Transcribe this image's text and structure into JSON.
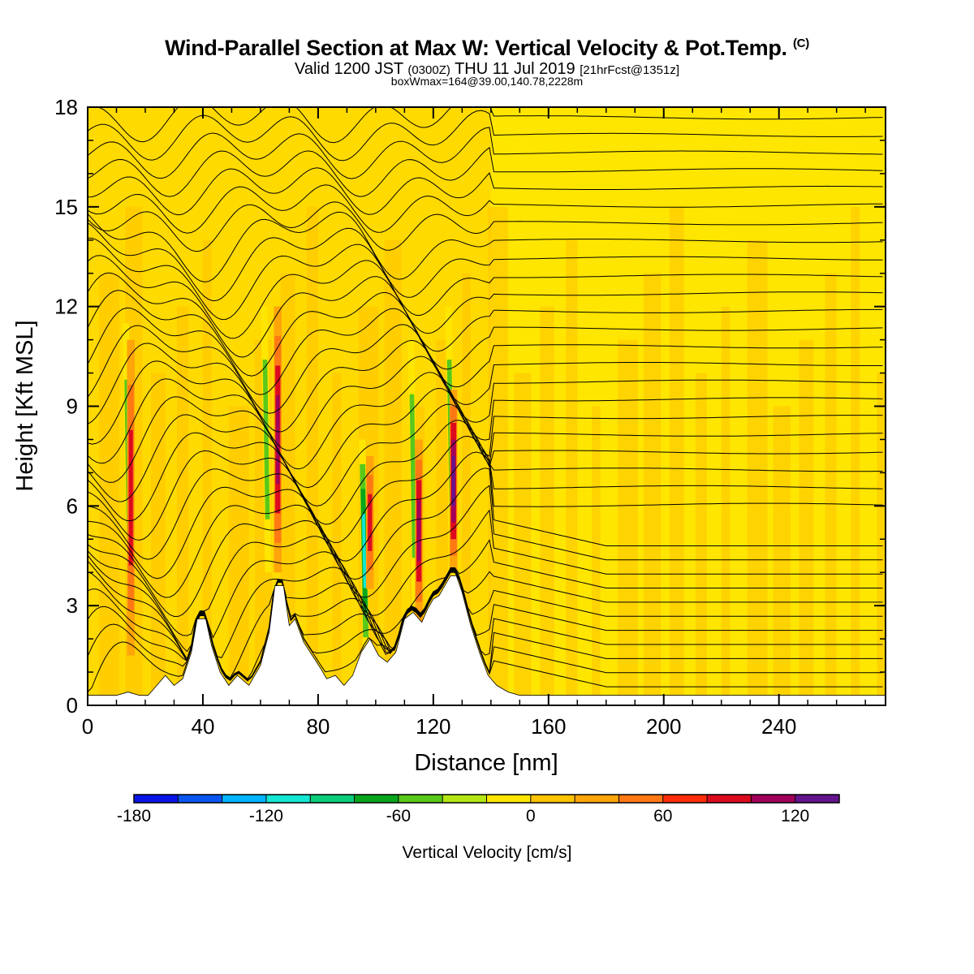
{
  "header": {
    "title": "Wind-Parallel Section at Max W: Vertical Velocity & Pot.Temp.",
    "title_mark": "(C)",
    "valid_prefix": "Valid 1200 JST",
    "valid_z": "(0300Z)",
    "valid_date": "THU 11 Jul 2019",
    "valid_fcst": "[21hrFcst@1351z]",
    "boxline": "boxWmax=164@39.00,140.78,2228m"
  },
  "chart_data": {
    "type": "heatmap",
    "xlabel": "Distance [nm]",
    "ylabel": "Height [Kft MSL]",
    "xlim": [
      0,
      277
    ],
    "ylim": [
      0,
      18
    ],
    "x_ticks": [
      0,
      40,
      80,
      120,
      160,
      200,
      240
    ],
    "y_ticks": [
      0,
      3,
      6,
      9,
      12,
      15,
      18
    ],
    "background_value_cm_s": 0,
    "terrain_kft": [
      [
        0,
        0.3
      ],
      [
        10,
        0.3
      ],
      [
        14,
        0.4
      ],
      [
        18,
        0.3
      ],
      [
        21,
        0.3
      ],
      [
        24,
        0.6
      ],
      [
        27,
        0.9
      ],
      [
        30,
        0.6
      ],
      [
        33,
        0.8
      ],
      [
        36,
        1.6
      ],
      [
        38,
        2.6
      ],
      [
        41,
        2.6
      ],
      [
        43,
        1.8
      ],
      [
        46,
        1.0
      ],
      [
        49,
        0.6
      ],
      [
        52,
        0.9
      ],
      [
        56,
        0.6
      ],
      [
        60,
        1.2
      ],
      [
        63,
        2.2
      ],
      [
        65,
        3.6
      ],
      [
        68,
        3.6
      ],
      [
        70,
        2.4
      ],
      [
        72,
        2.6
      ],
      [
        75,
        1.9
      ],
      [
        78,
        1.5
      ],
      [
        81,
        1.1
      ],
      [
        83,
        0.8
      ],
      [
        86,
        0.9
      ],
      [
        89,
        0.6
      ],
      [
        92,
        0.9
      ],
      [
        95,
        1.6
      ],
      [
        98,
        2.0
      ],
      [
        101,
        1.5
      ],
      [
        104,
        1.3
      ],
      [
        107,
        1.6
      ],
      [
        110,
        2.6
      ],
      [
        113,
        2.8
      ],
      [
        116,
        2.5
      ],
      [
        118,
        2.9
      ],
      [
        120,
        3.2
      ],
      [
        122,
        3.3
      ],
      [
        124,
        3.6
      ],
      [
        126,
        3.9
      ],
      [
        128,
        3.9
      ],
      [
        130,
        3.4
      ],
      [
        133,
        2.4
      ],
      [
        136,
        1.6
      ],
      [
        139,
        0.9
      ],
      [
        142,
        0.6
      ],
      [
        146,
        0.4
      ],
      [
        150,
        0.3
      ],
      [
        160,
        0.3
      ],
      [
        277,
        0.3
      ]
    ],
    "updraft_cores": [
      {
        "x": 15,
        "z_bottom": 1.5,
        "z_top": 11.0,
        "peak_cm_s": 90
      },
      {
        "x": 66,
        "z_bottom": 4.0,
        "z_top": 12.0,
        "peak_cm_s": 110
      },
      {
        "x": 98,
        "z_bottom": 3.5,
        "z_top": 7.5,
        "peak_cm_s": 90
      },
      {
        "x": 115,
        "z_bottom": 2.5,
        "z_top": 8.0,
        "peak_cm_s": 130
      },
      {
        "x": 127,
        "z_bottom": 4.0,
        "z_top": 9.5,
        "peak_cm_s": 164
      }
    ],
    "downdraft_cores": [
      {
        "x": 14,
        "z_bottom": 3.0,
        "z_top": 11.5,
        "peak_cm_s": -50
      },
      {
        "x": 62,
        "z_bottom": 4.0,
        "z_top": 12.0,
        "peak_cm_s": -50
      },
      {
        "x": 96,
        "z_bottom": 1.3,
        "z_top": 8.0,
        "peak_cm_s": -130
      },
      {
        "x": 113,
        "z_bottom": 2.8,
        "z_top": 11.0,
        "peak_cm_s": -70
      },
      {
        "x": 126,
        "z_bottom": 4.0,
        "z_top": 12.0,
        "peak_cm_s": -60
      }
    ],
    "colorbar": {
      "label": "Vertical Velocity [cm/s]",
      "tick_values": [
        -180,
        -120,
        -60,
        0,
        60,
        120
      ],
      "tick_labels": [
        "-180",
        "-120",
        "-60",
        "0",
        "60",
        "120"
      ],
      "bounds": [
        -180,
        140
      ],
      "colors": [
        "#0a14e6",
        "#0a55f0",
        "#00b4ff",
        "#13e6d2",
        "#0ccc7a",
        "#09a51d",
        "#5ac81a",
        "#b4e614",
        "#ffe600",
        "#ffc300",
        "#ffa50a",
        "#ff7814",
        "#ff2d0a",
        "#dc0a1e",
        "#a0005a",
        "#64148c"
      ]
    }
  }
}
